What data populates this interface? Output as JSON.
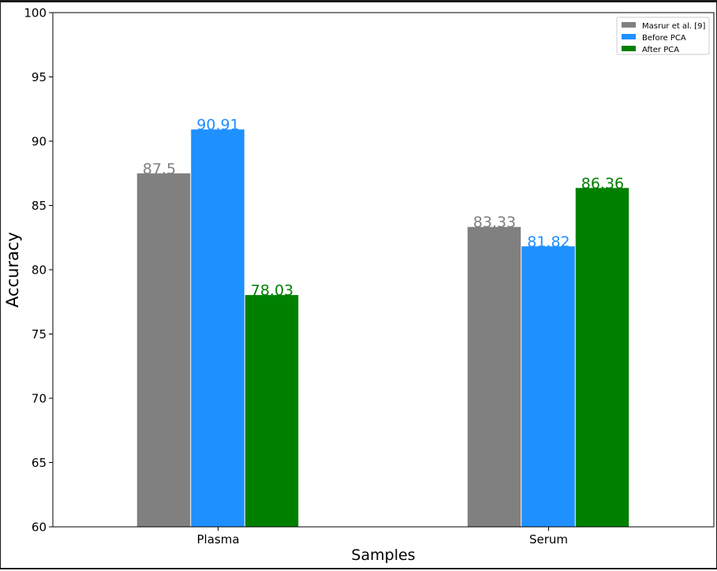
{
  "chart_data": {
    "type": "bar",
    "categories": [
      "Plasma",
      "Serum"
    ],
    "series": [
      {
        "name": "Masrur et al. [9]",
        "values": [
          87.5,
          83.33
        ],
        "color": "#808080"
      },
      {
        "name": "Before PCA",
        "values": [
          90.91,
          81.82
        ],
        "color": "#1e90ff"
      },
      {
        "name": "After PCA",
        "values": [
          78.03,
          86.36
        ],
        "color": "#008000"
      }
    ],
    "data_labels": [
      [
        "87.5",
        "83.33"
      ],
      [
        "90.91",
        "81.82"
      ],
      [
        "78.03",
        "86.36"
      ]
    ],
    "xlabel": "Samples",
    "ylabel": "Accuracy",
    "ylim": [
      60,
      100
    ],
    "yticks": [
      60,
      65,
      70,
      75,
      80,
      85,
      90,
      95,
      100
    ],
    "grid": false,
    "legend_position": "top-right"
  }
}
